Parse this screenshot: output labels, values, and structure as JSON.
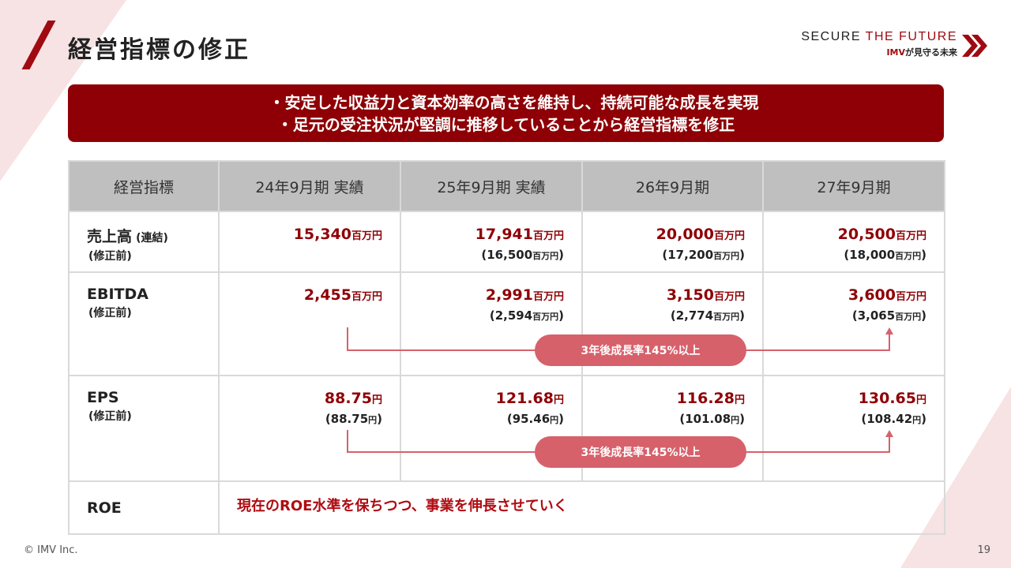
{
  "title": "経営指標の修正",
  "logo": {
    "line1_a": "SECURE ",
    "line1_b": "THE FUTURE",
    "line2_a": "IMV",
    "line2_b": "が見守る未来"
  },
  "banner": {
    "line1": "・安定した収益力と資本効率の高さを維持し、持続可能な成長を実現",
    "line2": "・足元の受注状況が堅調に推移していることから経営指標を修正"
  },
  "table": {
    "headers": [
      "経営指標",
      "24年9月期 実績",
      "25年9月期 実績",
      "26年9月期",
      "27年9月期"
    ],
    "unit_money": "百万円",
    "unit_yen": "円",
    "rows": {
      "sales": {
        "label": "売上高",
        "label_small": "(連結)",
        "sub": "(修正前)",
        "values": [
          "15,340",
          "17,941",
          "20,000",
          "20,500"
        ],
        "prev": [
          "",
          "16,500",
          "17,200",
          "18,000"
        ]
      },
      "ebitda": {
        "label": "EBITDA",
        "sub": "(修正前)",
        "values": [
          "2,455",
          "2,991",
          "3,150",
          "3,600"
        ],
        "prev": [
          "",
          "2,594",
          "2,774",
          "3,065"
        ],
        "growth_label": "3年後成長率145%以上"
      },
      "eps": {
        "label": "EPS",
        "sub": "(修正前)",
        "values": [
          "88.75",
          "121.68",
          "116.28",
          "130.65"
        ],
        "prev": [
          "88.75",
          "95.46",
          "101.08",
          "108.42"
        ],
        "growth_label": "3年後成長率145%以上"
      },
      "roe": {
        "label": "ROE",
        "text": "現在のROE水準を保ちつつ、事業を伸長させていく"
      }
    }
  },
  "colors": {
    "brand_red": "#8e0005",
    "pill_red": "#d6616b",
    "header_gray": "#bfbfbf"
  },
  "footer": {
    "copyright": "© IMV Inc.",
    "page": "19"
  }
}
